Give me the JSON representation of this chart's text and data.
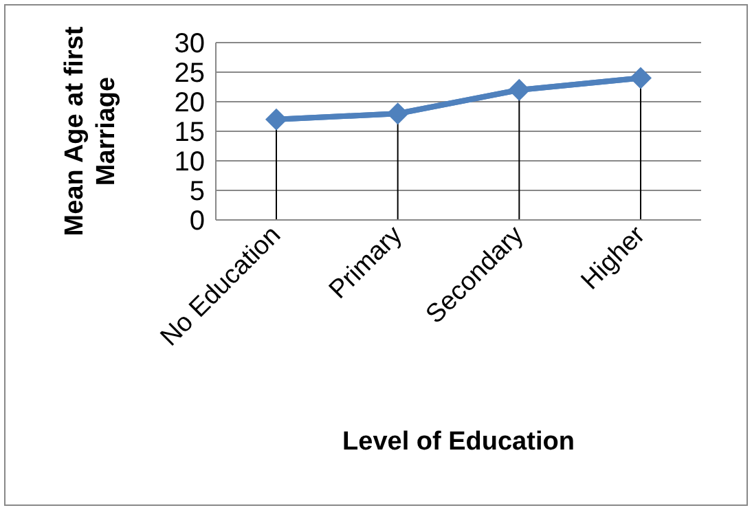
{
  "chart_data": {
    "type": "line",
    "xlabel": "Level of Education",
    "ylabel": "Mean Age at first Marriage",
    "categories": [
      "No Education",
      "Primary",
      "Secondary",
      "Higher"
    ],
    "series": [
      {
        "color": "#4f81bd",
        "marker": "none",
        "values": [
          17,
          18,
          22,
          24
        ]
      },
      {
        "type": "lollipop",
        "color": "#4f81bd",
        "values": [
          17,
          18,
          22,
          24
        ]
      }
    ],
    "ylim": [
      0,
      30
    ],
    "yticks": [
      0,
      5,
      10,
      15,
      20,
      25,
      30
    ],
    "grid": "y",
    "legend": false,
    "marker": "diamond",
    "line_style": "solid"
  }
}
